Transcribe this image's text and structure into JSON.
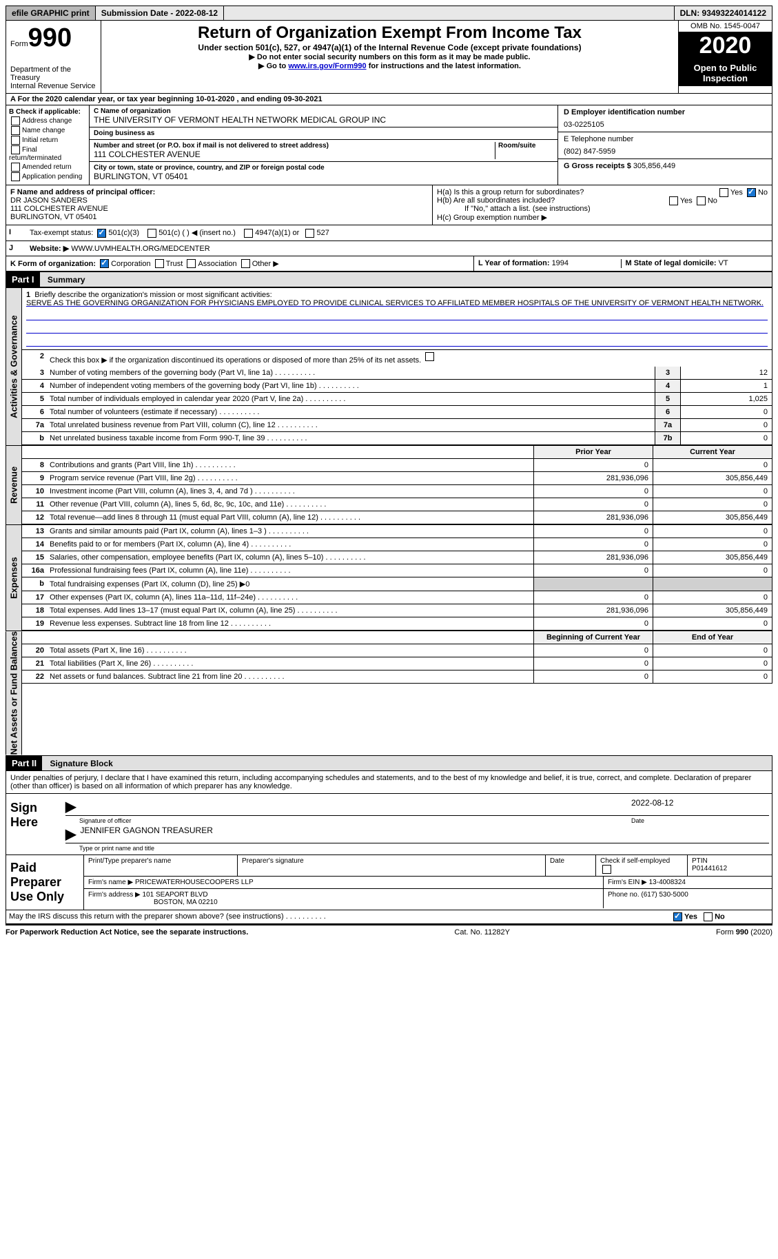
{
  "topbar": {
    "efile": "efile GRAPHIC print",
    "submission": "Submission Date - 2022-08-12",
    "dln": "DLN: 93493224014122"
  },
  "header": {
    "form_prefix": "Form",
    "form_num": "990",
    "dept1": "Department of the Treasury",
    "dept2": "Internal Revenue Service",
    "title": "Return of Organization Exempt From Income Tax",
    "subtitle": "Under section 501(c), 527, or 4947(a)(1) of the Internal Revenue Code (except private foundations)",
    "instr1": "▶ Do not enter social security numbers on this form as it may be made public.",
    "instr2_pre": "▶ Go to ",
    "instr2_link": "www.irs.gov/Form990",
    "instr2_post": " for instructions and the latest information.",
    "omb": "OMB No. 1545-0047",
    "year": "2020",
    "inspect": "Open to Public Inspection"
  },
  "lineA": "A For the 2020 calendar year, or tax year beginning 10-01-2020   , and ending 09-30-2021",
  "boxB": {
    "hdr": "B Check if applicable:",
    "opts": [
      "Address change",
      "Name change",
      "Initial return",
      "Final return/terminated",
      "Amended return",
      "Application pending"
    ]
  },
  "boxC": {
    "name_lbl": "C Name of organization",
    "name": "THE UNIVERSITY OF VERMONT HEALTH NETWORK MEDICAL GROUP INC",
    "dba_lbl": "Doing business as",
    "addr_lbl": "Number and street (or P.O. box if mail is not delivered to street address)",
    "room_lbl": "Room/suite",
    "addr": "111 COLCHESTER AVENUE",
    "city_lbl": "City or town, state or province, country, and ZIP or foreign postal code",
    "city": "BURLINGTON, VT  05401"
  },
  "boxDE": {
    "d_lbl": "D Employer identification number",
    "d_val": "03-0225105",
    "e_lbl": "E Telephone number",
    "e_val": "(802) 847-5959",
    "g_lbl": "G Gross receipts $ ",
    "g_val": "305,856,449"
  },
  "rowF": {
    "lbl": "F Name and address of principal officer:",
    "name": "DR JASON SANDERS",
    "addr1": "111 COLCHESTER AVENUE",
    "addr2": "BURLINGTON, VT  05401"
  },
  "rowH": {
    "ha": "H(a)  Is this a group return for subordinates?",
    "hb": "H(b)  Are all subordinates included?",
    "hb_note": "If \"No,\" attach a list. (see instructions)",
    "hc": "H(c)  Group exemption number ▶",
    "yes": "Yes",
    "no": "No"
  },
  "rowI": {
    "lbl": "Tax-exempt status:",
    "opts": [
      "501(c)(3)",
      "501(c) (  ) ◀ (insert no.)",
      "4947(a)(1) or",
      "527"
    ]
  },
  "rowJ": {
    "lbl": "Website: ▶",
    "val": "WWW.UVMHEALTH.ORG/MEDCENTER"
  },
  "rowK": {
    "lbl": "K Form of organization:",
    "opts": [
      "Corporation",
      "Trust",
      "Association",
      "Other ▶"
    ],
    "l_lbl": "L Year of formation: ",
    "l_val": "1994",
    "m_lbl": "M State of legal domicile: ",
    "m_val": "VT"
  },
  "part1": {
    "hdr": "Part I",
    "title": "Summary",
    "vtab_gov": "Activities & Governance",
    "vtab_rev": "Revenue",
    "vtab_exp": "Expenses",
    "vtab_net": "Net Assets or Fund Balances",
    "q1": "Briefly describe the organization's mission or most significant activities:",
    "mission": "SERVE AS THE GOVERNING ORGANIZATION FOR PHYSICIANS EMPLOYED TO PROVIDE CLINICAL SERVICES TO AFFILIATED MEMBER HOSPITALS OF THE UNIVERSITY OF VERMONT HEALTH NETWORK.",
    "q2": "Check this box ▶       if the organization discontinued its operations or disposed of more than 25% of its net assets.",
    "lines_gov": [
      {
        "n": "3",
        "d": "Number of voting members of the governing body (Part VI, line 1a)",
        "c": "3",
        "v": "12"
      },
      {
        "n": "4",
        "d": "Number of independent voting members of the governing body (Part VI, line 1b)",
        "c": "4",
        "v": "1"
      },
      {
        "n": "5",
        "d": "Total number of individuals employed in calendar year 2020 (Part V, line 2a)",
        "c": "5",
        "v": "1,025"
      },
      {
        "n": "6",
        "d": "Total number of volunteers (estimate if necessary)",
        "c": "6",
        "v": "0"
      },
      {
        "n": "7a",
        "d": "Total unrelated business revenue from Part VIII, column (C), line 12",
        "c": "7a",
        "v": "0"
      },
      {
        "n": "b",
        "d": "Net unrelated business taxable income from Form 990-T, line 39",
        "c": "7b",
        "v": "0"
      }
    ],
    "col_prior": "Prior Year",
    "col_curr": "Current Year",
    "lines_rev": [
      {
        "n": "8",
        "d": "Contributions and grants (Part VIII, line 1h)",
        "p": "0",
        "c": "0"
      },
      {
        "n": "9",
        "d": "Program service revenue (Part VIII, line 2g)",
        "p": "281,936,096",
        "c": "305,856,449"
      },
      {
        "n": "10",
        "d": "Investment income (Part VIII, column (A), lines 3, 4, and 7d )",
        "p": "0",
        "c": "0"
      },
      {
        "n": "11",
        "d": "Other revenue (Part VIII, column (A), lines 5, 6d, 8c, 9c, 10c, and 11e)",
        "p": "0",
        "c": "0"
      },
      {
        "n": "12",
        "d": "Total revenue—add lines 8 through 11 (must equal Part VIII, column (A), line 12)",
        "p": "281,936,096",
        "c": "305,856,449"
      }
    ],
    "lines_exp": [
      {
        "n": "13",
        "d": "Grants and similar amounts paid (Part IX, column (A), lines 1–3 )",
        "p": "0",
        "c": "0"
      },
      {
        "n": "14",
        "d": "Benefits paid to or for members (Part IX, column (A), line 4)",
        "p": "0",
        "c": "0"
      },
      {
        "n": "15",
        "d": "Salaries, other compensation, employee benefits (Part IX, column (A), lines 5–10)",
        "p": "281,936,096",
        "c": "305,856,449"
      },
      {
        "n": "16a",
        "d": "Professional fundraising fees (Part IX, column (A), line 11e)",
        "p": "0",
        "c": "0"
      },
      {
        "n": "b",
        "d": "Total fundraising expenses (Part IX, column (D), line 25) ▶0",
        "p": "",
        "c": "",
        "shaded": true
      },
      {
        "n": "17",
        "d": "Other expenses (Part IX, column (A), lines 11a–11d, 11f–24e)",
        "p": "0",
        "c": "0"
      },
      {
        "n": "18",
        "d": "Total expenses. Add lines 13–17 (must equal Part IX, column (A), line 25)",
        "p": "281,936,096",
        "c": "305,856,449"
      },
      {
        "n": "19",
        "d": "Revenue less expenses. Subtract line 18 from line 12",
        "p": "0",
        "c": "0"
      }
    ],
    "col_beg": "Beginning of Current Year",
    "col_end": "End of Year",
    "lines_net": [
      {
        "n": "20",
        "d": "Total assets (Part X, line 16)",
        "p": "0",
        "c": "0"
      },
      {
        "n": "21",
        "d": "Total liabilities (Part X, line 26)",
        "p": "0",
        "c": "0"
      },
      {
        "n": "22",
        "d": "Net assets or fund balances. Subtract line 21 from line 20",
        "p": "0",
        "c": "0"
      }
    ]
  },
  "part2": {
    "hdr": "Part II",
    "title": "Signature Block",
    "decl": "Under penalties of perjury, I declare that I have examined this return, including accompanying schedules and statements, and to the best of my knowledge and belief, it is true, correct, and complete. Declaration of preparer (other than officer) is based on all information of which preparer has any knowledge.",
    "sign_here": "Sign Here",
    "sig_lbl": "Signature of officer",
    "date_lbl": "Date",
    "sig_date": "2022-08-12",
    "officer": "JENNIFER GAGNON  TREASURER",
    "name_lbl": "Type or print name and title",
    "paid": "Paid Preparer Use Only",
    "pp_name_lbl": "Print/Type preparer's name",
    "pp_sig_lbl": "Preparer's signature",
    "pp_date_lbl": "Date",
    "pp_check": "Check        if self-employed",
    "ptin_lbl": "PTIN",
    "ptin": "P01441612",
    "firm_name_lbl": "Firm's name    ▶",
    "firm_name": "PRICEWATERHOUSECOOPERS LLP",
    "firm_ein_lbl": "Firm's EIN ▶",
    "firm_ein": "13-4008324",
    "firm_addr_lbl": "Firm's address ▶",
    "firm_addr": "101 SEAPORT BLVD",
    "firm_city": "BOSTON, MA  02210",
    "phone_lbl": "Phone no. ",
    "phone": "(617) 530-5000",
    "discuss": "May the IRS discuss this return with the preparer shown above? (see instructions)"
  },
  "footer": {
    "left": "For Paperwork Reduction Act Notice, see the separate instructions.",
    "mid": "Cat. No. 11282Y",
    "right": "Form 990 (2020)"
  }
}
